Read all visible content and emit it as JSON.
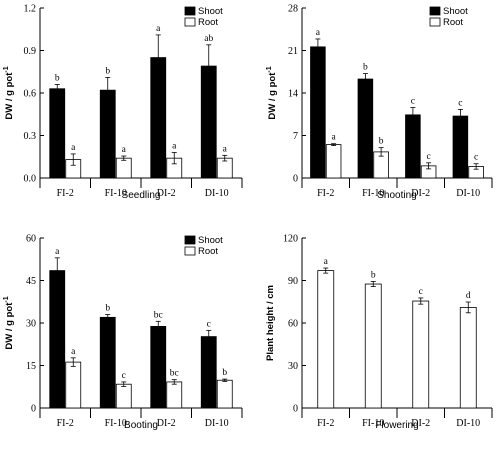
{
  "chart_data": [
    {
      "type": "bar",
      "categories": [
        "FI-2",
        "FI-10",
        "DI-2",
        "DI-10"
      ],
      "xlabel": "Seedling",
      "ylabel": "DW / g pot",
      "ylabel_sup": "-1",
      "ylim": [
        0,
        1.2
      ],
      "yticks": [
        "0.0",
        "0.3",
        "0.6",
        "0.9",
        "1.2"
      ],
      "legend_position": "top-right",
      "series": [
        {
          "name": "Shoot",
          "color": "#000000",
          "values": [
            0.63,
            0.62,
            0.85,
            0.79
          ],
          "errors": [
            0.03,
            0.09,
            0.16,
            0.15
          ],
          "sig": [
            "b",
            "b",
            "a",
            "ab"
          ]
        },
        {
          "name": "Root",
          "color": "#ffffff",
          "values": [
            0.13,
            0.14,
            0.14,
            0.14
          ],
          "errors": [
            0.04,
            0.015,
            0.04,
            0.02
          ],
          "sig": [
            "a",
            "a",
            "a",
            "a"
          ]
        }
      ]
    },
    {
      "type": "bar",
      "categories": [
        "FI-2",
        "FI-10",
        "DI-2",
        "DI-10"
      ],
      "xlabel": "Shooting",
      "ylabel": "DW / g pot",
      "ylabel_sup": "-1",
      "ylim": [
        0,
        28
      ],
      "yticks": [
        "0",
        "7",
        "14",
        "21",
        "28"
      ],
      "legend_position": "top-right",
      "series": [
        {
          "name": "Shoot",
          "color": "#000000",
          "values": [
            21.6,
            16.3,
            10.4,
            10.2
          ],
          "errors": [
            1.3,
            0.9,
            1.2,
            1.1
          ],
          "sig": [
            "a",
            "b",
            "c",
            "c"
          ]
        },
        {
          "name": "Root",
          "color": "#ffffff",
          "values": [
            5.5,
            4.3,
            2.0,
            1.9
          ],
          "errors": [
            0.15,
            0.7,
            0.5,
            0.45
          ],
          "sig": [
            "a",
            "b",
            "c",
            "c"
          ]
        }
      ]
    },
    {
      "type": "bar",
      "categories": [
        "FI-2",
        "FI-10",
        "DI-2",
        "DI-10"
      ],
      "xlabel": "Booting",
      "ylabel": "DW / g pot",
      "ylabel_sup": "-1",
      "ylim": [
        0,
        60
      ],
      "yticks": [
        "0",
        "15",
        "30",
        "45",
        "60"
      ],
      "legend_position": "top-right",
      "series": [
        {
          "name": "Shoot",
          "color": "#000000",
          "values": [
            48.5,
            32.0,
            28.8,
            25.2
          ],
          "errors": [
            4.5,
            1.0,
            1.8,
            2.2
          ],
          "sig": [
            "a",
            "b",
            "bc",
            "c"
          ]
        },
        {
          "name": "Root",
          "color": "#ffffff",
          "values": [
            16.2,
            8.4,
            9.2,
            9.8
          ],
          "errors": [
            1.5,
            0.8,
            0.8,
            0.4
          ],
          "sig": [
            "a",
            "c",
            "bc",
            "b"
          ]
        }
      ]
    },
    {
      "type": "bar",
      "categories": [
        "FI-2",
        "FI-10",
        "DI-2",
        "DI-10"
      ],
      "xlabel": "Flowering",
      "ylabel": "Plant height / cm",
      "ylim": [
        0,
        120
      ],
      "yticks": [
        "0",
        "30",
        "60",
        "90",
        "120"
      ],
      "series": [
        {
          "color": "#ffffff",
          "values": [
            97.0,
            87.5,
            75.5,
            71.0
          ],
          "errors": [
            1.8,
            1.8,
            2.2,
            3.8
          ],
          "sig": [
            "a",
            "b",
            "c",
            "d"
          ]
        }
      ]
    }
  ]
}
